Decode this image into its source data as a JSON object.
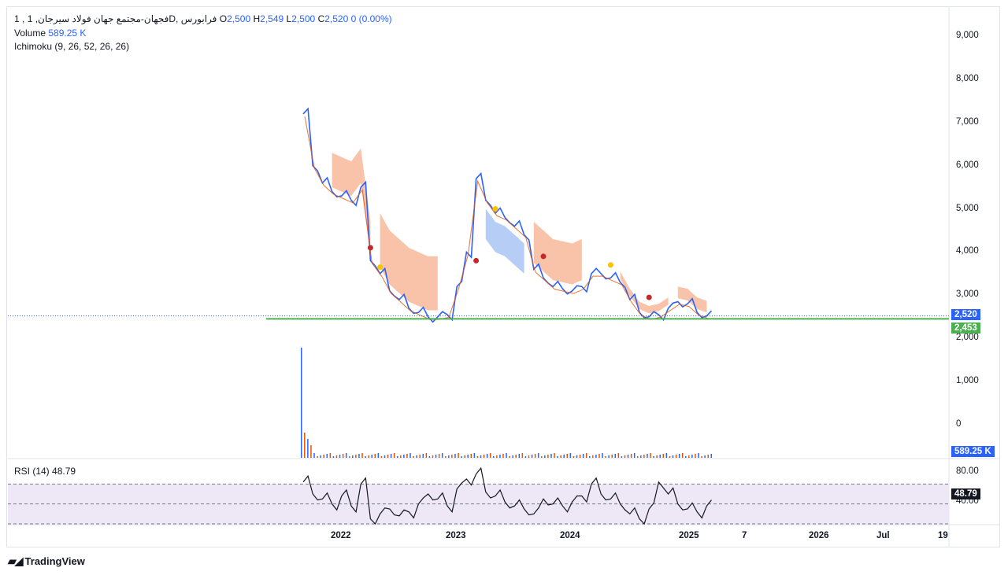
{
  "legend": {
    "symbol_line": "فجهان-مجتمع جهان فولاد سیرجان, 1D, فرابورس",
    "symbol_prefix": "1 ,",
    "open_label": "O",
    "open_value": "2,500",
    "high_label": "H",
    "high_value": "2,549",
    "low_label": "L",
    "low_value": "2,500",
    "close_label": "C",
    "close_value": "2,520",
    "change": "0 (0.00%)",
    "volume_label": "Volume",
    "volume_value": "589.25 K",
    "ichimoku_label": "Ichimoku (9, 26, 52, 26, 26)",
    "rsi_label": "RSI (14)",
    "rsi_value": "48.79"
  },
  "price_axis": [
    "9,000",
    "8,000",
    "7,000",
    "6,000",
    "5,000",
    "4,000",
    "3,000",
    "2,000",
    "1,000",
    "0"
  ],
  "badges": {
    "last_price": "2,520",
    "support_line": "2,453",
    "volume": "589.25 K",
    "rsi": "48.79"
  },
  "rsi_axis": {
    "upper": "80.00",
    "lower": "40.00"
  },
  "time_axis": [
    "2022",
    "2023",
    "2024",
    "2025",
    "7",
    "2026",
    "Jul",
    "19"
  ],
  "branding": "TradingView",
  "colors": {
    "up": "#2962ff",
    "down": "#e65100",
    "cloud_bear": "#f7b899",
    "cloud_bull": "#a9c4f5",
    "support": "#4caf50",
    "rsi_band": "#ede7f6"
  },
  "chart_data": {
    "type": "line",
    "price_ylim": [
      0,
      9000
    ],
    "price_series": {
      "x": [
        "2021-09",
        "2021-10",
        "2021-11",
        "2021-12",
        "2022-01",
        "2022-02",
        "2022-03",
        "2022-04",
        "2022-05",
        "2022-06",
        "2022-07",
        "2022-08",
        "2022-09",
        "2022-10",
        "2022-11",
        "2022-12",
        "2023-01",
        "2023-02",
        "2023-03",
        "2023-04",
        "2023-05",
        "2023-06",
        "2023-07",
        "2023-08",
        "2023-09",
        "2023-10",
        "2023-11",
        "2023-12",
        "2024-01",
        "2024-02",
        "2024-03",
        "2024-04",
        "2024-05",
        "2024-06",
        "2024-07",
        "2024-08",
        "2024-09",
        "2024-10",
        "2024-11",
        "2024-12",
        "2025-01",
        "2025-02",
        "2025-03"
      ],
      "y": [
        7200,
        6000,
        5600,
        5400,
        5300,
        5200,
        5500,
        3800,
        3500,
        3100,
        2900,
        2700,
        2600,
        2500,
        2500,
        2550,
        3200,
        4000,
        5700,
        5200,
        4900,
        4800,
        4600,
        4400,
        3600,
        3400,
        3200,
        3150,
        3100,
        3200,
        3500,
        3500,
        3400,
        3300,
        2900,
        2600,
        2500,
        2550,
        2700,
        2850,
        2800,
        2600,
        2520
      ]
    },
    "support_level": 2453,
    "last_close": 2520,
    "rsi_ylim": [
      30,
      90
    ],
    "rsi_levels": [
      70,
      50,
      30
    ]
  }
}
